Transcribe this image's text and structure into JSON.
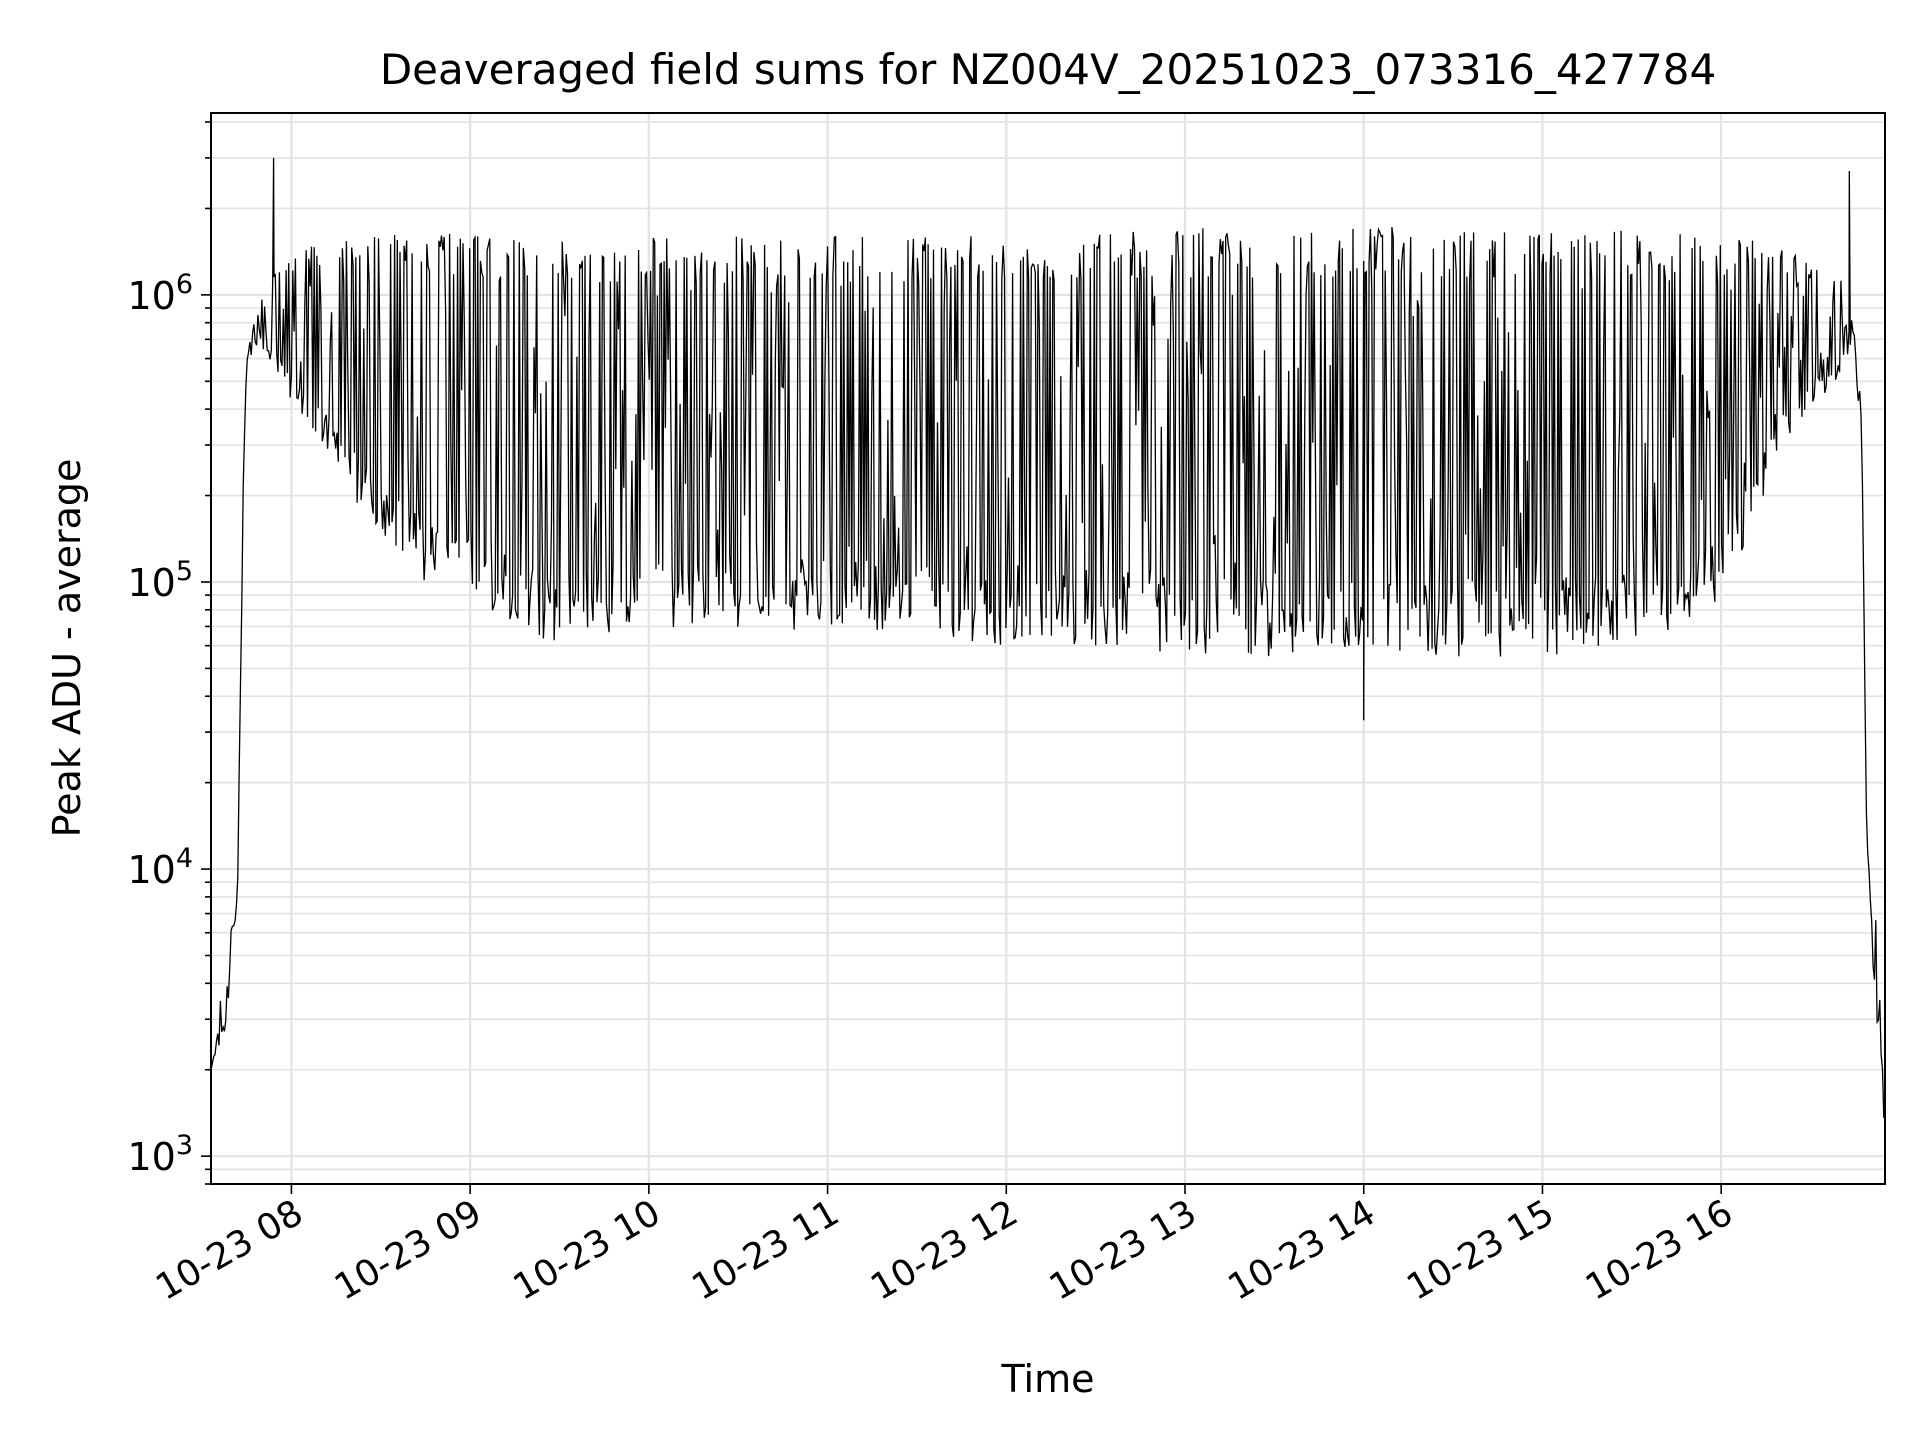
{
  "chart_data": {
    "type": "line",
    "title": "Deaveraged field sums for NZ004V_20251023_073316_427784",
    "xlabel": "Time",
    "ylabel": "Peak ADU - average",
    "yscale": "log",
    "ylim": [
      800,
      4300000
    ],
    "xlim": [
      "2025-10-23 07:33",
      "2025-10-23 16:55"
    ],
    "grid": true,
    "line_color": "#000000",
    "x_ticks": [
      {
        "value": "2025-10-23 08:00",
        "label": "10-23 08"
      },
      {
        "value": "2025-10-23 09:00",
        "label": "10-23 09"
      },
      {
        "value": "2025-10-23 10:00",
        "label": "10-23 10"
      },
      {
        "value": "2025-10-23 11:00",
        "label": "10-23 11"
      },
      {
        "value": "2025-10-23 12:00",
        "label": "10-23 12"
      },
      {
        "value": "2025-10-23 13:00",
        "label": "10-23 13"
      },
      {
        "value": "2025-10-23 14:00",
        "label": "10-23 14"
      },
      {
        "value": "2025-10-23 15:00",
        "label": "10-23 15"
      },
      {
        "value": "2025-10-23 16:00",
        "label": "10-23 16"
      }
    ],
    "y_ticks": [
      {
        "value": 1000,
        "base": "10",
        "exp": "3"
      },
      {
        "value": 10000,
        "base": "10",
        "exp": "4"
      },
      {
        "value": 100000,
        "base": "10",
        "exp": "5"
      },
      {
        "value": 1000000,
        "base": "10",
        "exp": "6"
      }
    ],
    "series": [
      {
        "upper": {
          "x": [
            "2025-10-23 07:33",
            "2025-10-23 07:36",
            "2025-10-23 07:38",
            "2025-10-23 07:40",
            "2025-10-23 07:42",
            "2025-10-23 07:44",
            "2025-10-23 07:45",
            "2025-10-23 07:48",
            "2025-10-23 07:52",
            "2025-10-23 07:55",
            "2025-10-23 08:00",
            "2025-10-23 08:10",
            "2025-10-23 08:20",
            "2025-10-23 08:30",
            "2025-10-23 08:45",
            "2025-10-23 09:00",
            "2025-10-23 09:30",
            "2025-10-23 10:00",
            "2025-10-23 10:30",
            "2025-10-23 11:00",
            "2025-10-23 11:30",
            "2025-10-23 12:00",
            "2025-10-23 12:30",
            "2025-10-23 13:00",
            "2025-10-23 13:30",
            "2025-10-23 14:00",
            "2025-10-23 14:30",
            "2025-10-23 15:00",
            "2025-10-23 15:30",
            "2025-10-23 16:00",
            "2025-10-23 16:20",
            "2025-10-23 16:30",
            "2025-10-23 16:40",
            "2025-10-23 16:44",
            "2025-10-23 16:45",
            "2025-10-23 16:47",
            "2025-10-23 16:49",
            "2025-10-23 16:50",
            "2025-10-23 16:52",
            "2025-10-23 16:54",
            "2025-10-23 16:55"
          ],
          "y": [
            2000,
            3500,
            3600,
            8000,
            11000,
            300000,
            600000,
            900000,
            1100000,
            1300000,
            1400000,
            1600000,
            1700000,
            1700000,
            1700000,
            1600000,
            1600000,
            1600000,
            1600000,
            1600000,
            1600000,
            1650000,
            1700000,
            1700000,
            1750000,
            1750000,
            1750000,
            1700000,
            1700000,
            1650000,
            1500000,
            1300000,
            1200000,
            1000000,
            800000,
            500000,
            12000,
            11000,
            7000,
            2500,
            1000
          ]
        },
        "lower": {
          "x": [
            "2025-10-23 07:33",
            "2025-10-23 07:36",
            "2025-10-23 07:38",
            "2025-10-23 07:40",
            "2025-10-23 07:42",
            "2025-10-23 07:44",
            "2025-10-23 07:45",
            "2025-10-23 07:48",
            "2025-10-23 07:52",
            "2025-10-23 07:55",
            "2025-10-23 08:00",
            "2025-10-23 08:10",
            "2025-10-23 08:20",
            "2025-10-23 08:30",
            "2025-10-23 08:45",
            "2025-10-23 09:00",
            "2025-10-23 09:15",
            "2025-10-23 09:30",
            "2025-10-23 10:00",
            "2025-10-23 10:30",
            "2025-10-23 11:00",
            "2025-10-23 11:30",
            "2025-10-23 12:00",
            "2025-10-23 12:30",
            "2025-10-23 13:00",
            "2025-10-23 13:30",
            "2025-10-23 14:00",
            "2025-10-23 14:30",
            "2025-10-23 15:00",
            "2025-10-23 15:30",
            "2025-10-23 16:00",
            "2025-10-23 16:10",
            "2025-10-23 16:20",
            "2025-10-23 16:30",
            "2025-10-23 16:40",
            "2025-10-23 16:44",
            "2025-10-23 16:45",
            "2025-10-23 16:47",
            "2025-10-23 16:49",
            "2025-10-23 16:50",
            "2025-10-23 16:52",
            "2025-10-23 16:54",
            "2025-10-23 16:55"
          ],
          "y": [
            2000,
            2200,
            2500,
            5000,
            8000,
            250000,
            500000,
            650000,
            600000,
            550000,
            400000,
            300000,
            200000,
            150000,
            100000,
            90000,
            70000,
            60000,
            65000,
            65000,
            70000,
            65000,
            60000,
            60000,
            55000,
            55000,
            55000,
            55000,
            55000,
            60000,
            80000,
            150000,
            300000,
            400000,
            500000,
            700000,
            600000,
            300000,
            10000,
            7000,
            3000,
            1800,
            1000
          ]
        },
        "spikes": [
          {
            "x": "2025-10-23 07:54",
            "y": 3000000
          },
          {
            "x": "2025-10-23 16:43",
            "y": 2700000
          }
        ],
        "minimum": {
          "x": "2025-10-23 14:00",
          "y": 33000
        }
      }
    ]
  }
}
